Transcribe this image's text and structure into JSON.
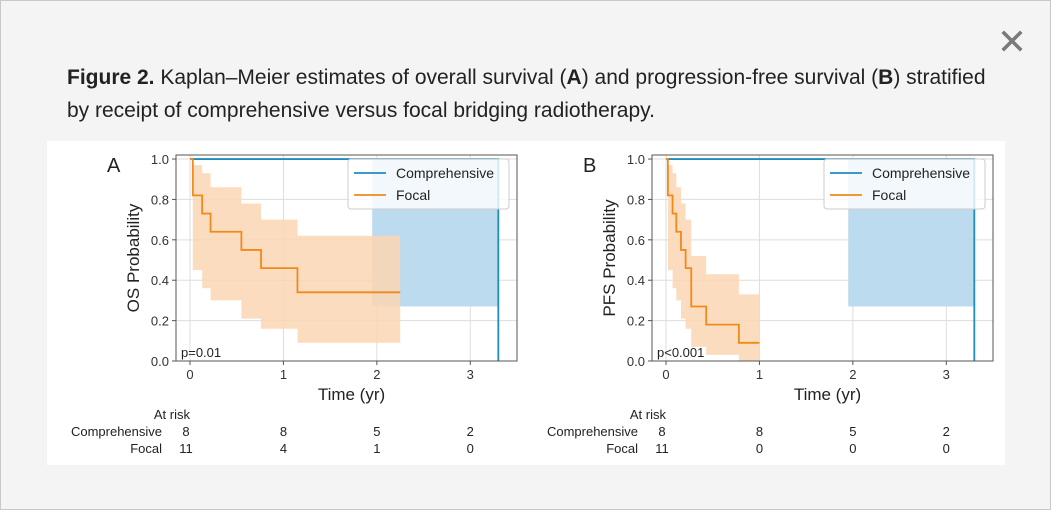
{
  "modal": {
    "close_label": "✕",
    "close_icon": "close-icon"
  },
  "caption": {
    "figure_label": "Figure 2.",
    "text_a": " Kaplan–Meier estimates of overall survival (",
    "letter_a": "A",
    "text_b": ") and progression-free survival (",
    "letter_b": "B",
    "text_c": ") stratified by receipt of comprehensive versus focal bridging radiotherapy."
  },
  "colors": {
    "comprehensive": "#1f8bbf",
    "focal": "#f08a1a",
    "comprehensive_ci": "#b8d9ee",
    "focal_ci": "#fbd6b4",
    "frame": "#555555",
    "grid": "#dddddd"
  },
  "chart_data": [
    {
      "type": "line",
      "panel_label": "A",
      "xlabel": "Time (yr)",
      "ylabel": "OS Probability",
      "xlim": [
        -0.15,
        3.5
      ],
      "ylim": [
        0.0,
        1.02
      ],
      "x_ticks": [
        "0",
        "1",
        "2",
        "3"
      ],
      "y_ticks": [
        "0.0",
        "0.2",
        "0.4",
        "0.6",
        "0.8",
        "1.0"
      ],
      "grid": true,
      "legend_position": "top-right",
      "p_value": "p=0.01",
      "series": [
        {
          "name": "Comprehensive",
          "x": [
            0,
            1.95,
            3.3,
            3.3
          ],
          "y": [
            1.0,
            1.0,
            1.0,
            0.0
          ],
          "ci_x": [
            1.95,
            3.3
          ],
          "ci_lower": [
            0.27,
            0.27
          ],
          "ci_upper": [
            1.0,
            1.0
          ]
        },
        {
          "name": "Focal",
          "x": [
            0,
            0.03,
            0.13,
            0.22,
            0.55,
            0.76,
            1.15,
            2.25
          ],
          "y": [
            1.0,
            0.82,
            0.73,
            0.64,
            0.55,
            0.46,
            0.34,
            0.34
          ],
          "ci_upper": [
            1.0,
            0.97,
            0.93,
            0.86,
            0.78,
            0.7,
            0.62,
            0.62
          ],
          "ci_lower": [
            1.0,
            0.45,
            0.36,
            0.3,
            0.21,
            0.16,
            0.09,
            0.09
          ]
        }
      ],
      "at_risk": {
        "title": "At risk",
        "rows": [
          {
            "label": "Comprehensive",
            "values": [
              "8",
              "8",
              "5",
              "2"
            ]
          },
          {
            "label": "Focal",
            "values": [
              "11",
              "4",
              "1",
              "0"
            ]
          }
        ]
      }
    },
    {
      "type": "line",
      "panel_label": "B",
      "xlabel": "Time (yr)",
      "ylabel": "PFS Probability",
      "xlim": [
        -0.15,
        3.5
      ],
      "ylim": [
        0.0,
        1.02
      ],
      "x_ticks": [
        "0",
        "1",
        "2",
        "3"
      ],
      "y_ticks": [
        "0.0",
        "0.2",
        "0.4",
        "0.6",
        "0.8",
        "1.0"
      ],
      "grid": true,
      "legend_position": "top-right",
      "p_value": "p<0.001",
      "series": [
        {
          "name": "Comprehensive",
          "x": [
            0,
            1.95,
            3.3,
            3.3
          ],
          "y": [
            1.0,
            1.0,
            1.0,
            0.0
          ],
          "ci_x": [
            1.95,
            3.3
          ],
          "ci_lower": [
            0.27,
            0.27
          ],
          "ci_upper": [
            1.0,
            1.0
          ]
        },
        {
          "name": "Focal",
          "x": [
            0,
            0.02,
            0.07,
            0.11,
            0.16,
            0.21,
            0.27,
            0.43,
            0.78,
            1.0
          ],
          "y": [
            1.0,
            0.82,
            0.73,
            0.64,
            0.55,
            0.46,
            0.27,
            0.18,
            0.09,
            0.09
          ],
          "ci_upper": [
            1.0,
            0.97,
            0.93,
            0.86,
            0.78,
            0.7,
            0.52,
            0.43,
            0.33,
            0.33
          ],
          "ci_lower": [
            1.0,
            0.45,
            0.36,
            0.3,
            0.21,
            0.16,
            0.07,
            0.03,
            0.0,
            0.0
          ]
        }
      ],
      "at_risk": {
        "title": "At risk",
        "rows": [
          {
            "label": "Comprehensive",
            "values": [
              "8",
              "8",
              "5",
              "2"
            ]
          },
          {
            "label": "Focal",
            "values": [
              "11",
              "0",
              "0",
              "0"
            ]
          }
        ]
      }
    }
  ]
}
